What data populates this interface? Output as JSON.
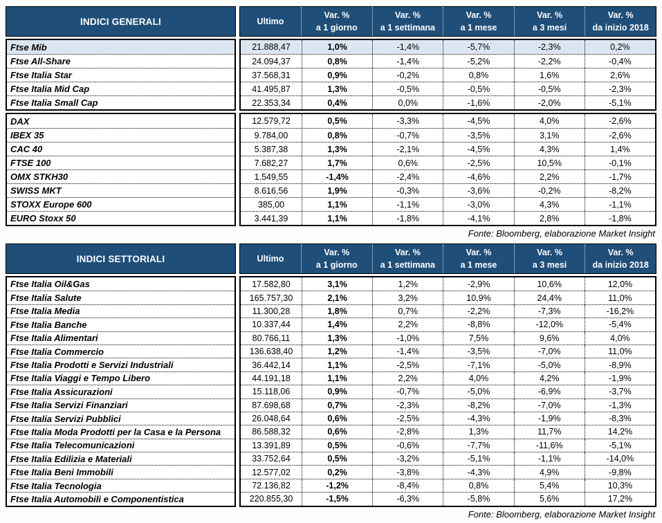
{
  "colors": {
    "header_bg": "#1F4E79",
    "header_text": "#ffffff",
    "highlight_row_bg": "#DCE6F1",
    "border": "#000000",
    "body_text": "#000000"
  },
  "columns": [
    {
      "label": "Ultimo"
    },
    {
      "label": "Var. %",
      "sub": "a 1 giorno"
    },
    {
      "label": "Var. %",
      "sub": "a 1 settimana"
    },
    {
      "label": "Var. %",
      "sub": "a 1 mese"
    },
    {
      "label": "Var. %",
      "sub": "a 3 mesi"
    },
    {
      "label": "Var. %",
      "sub": "da inizio 2018"
    }
  ],
  "tables": [
    {
      "title": "INDICI GENERALI",
      "source": "Fonte: Bloomberg, elaborazione Market Insight",
      "blocks": [
        {
          "rows": [
            {
              "name": "Ftse Mib",
              "highlight": true,
              "values": [
                "21.888,47",
                "1,0%",
                "-1,4%",
                "-5,7%",
                "-2,3%",
                "0,2%"
              ]
            },
            {
              "name": "Ftse All-Share",
              "values": [
                "24.094,37",
                "0,8%",
                "-1,4%",
                "-5,2%",
                "-2,2%",
                "-0,4%"
              ]
            },
            {
              "name": "Ftse Italia Star",
              "values": [
                "37.568,31",
                "0,9%",
                "-0,2%",
                "0,8%",
                "1,6%",
                "2,6%"
              ]
            },
            {
              "name": "Ftse Italia Mid Cap",
              "values": [
                "41.495,87",
                "1,3%",
                "-0,5%",
                "-0,5%",
                "-0,5%",
                "-2,3%"
              ]
            },
            {
              "name": "Ftse Italia Small Cap",
              "values": [
                "22.353,34",
                "0,4%",
                "0,0%",
                "-1,6%",
                "-2,0%",
                "-5,1%"
              ]
            }
          ]
        },
        {
          "rows": [
            {
              "name": "DAX",
              "values": [
                "12.579,72",
                "0,5%",
                "-3,3%",
                "-4,5%",
                "4,0%",
                "-2,6%"
              ]
            },
            {
              "name": "IBEX 35",
              "values": [
                "9.784,00",
                "0,8%",
                "-0,7%",
                "-3,5%",
                "3,1%",
                "-2,6%"
              ]
            },
            {
              "name": "CAC 40",
              "values": [
                "5.387,38",
                "1,3%",
                "-2,1%",
                "-4,5%",
                "4,3%",
                "1,4%"
              ]
            },
            {
              "name": "FTSE 100",
              "values": [
                "7.682,27",
                "1,7%",
                "0,6%",
                "-2,5%",
                "10,5%",
                "-0,1%"
              ]
            },
            {
              "name": "OMX STKH30",
              "values": [
                "1.549,55",
                "-1,4%",
                "-2,4%",
                "-4,6%",
                "2,2%",
                "-1,7%"
              ]
            },
            {
              "name": "SWISS MKT",
              "values": [
                "8.616,56",
                "1,9%",
                "-0,3%",
                "-3,6%",
                "-0,2%",
                "-8,2%"
              ]
            },
            {
              "name": "STOXX Europe 600",
              "values": [
                "385,00",
                "1,1%",
                "-1,1%",
                "-3,0%",
                "4,3%",
                "-1,1%"
              ]
            },
            {
              "name": "EURO Stoxx 50",
              "values": [
                "3.441,39",
                "1,1%",
                "-1,8%",
                "-4,1%",
                "2,8%",
                "-1,8%"
              ]
            }
          ]
        }
      ]
    },
    {
      "title": "INDICI SETTORIALI",
      "source": "Fonte: Bloomberg, elaborazione Market Insight",
      "blocks": [
        {
          "rows": [
            {
              "name": "Ftse Italia Oil&Gas",
              "values": [
                "17.582,80",
                "3,1%",
                "1,2%",
                "-2,9%",
                "10,6%",
                "12,0%"
              ]
            },
            {
              "name": "Ftse Italia Salute",
              "values": [
                "165.757,30",
                "2,1%",
                "3,2%",
                "10,9%",
                "24,4%",
                "11,0%"
              ]
            },
            {
              "name": "Ftse Italia Media",
              "values": [
                "11.300,28",
                "1,8%",
                "0,7%",
                "-2,2%",
                "-7,3%",
                "-16,2%"
              ]
            },
            {
              "name": "Ftse Italia Banche",
              "values": [
                "10.337,44",
                "1,4%",
                "2,2%",
                "-8,8%",
                "-12,0%",
                "-5,4%"
              ]
            },
            {
              "name": "Ftse Italia Alimentari",
              "values": [
                "80.766,11",
                "1,3%",
                "-1,0%",
                "7,5%",
                "9,6%",
                "4,0%"
              ]
            },
            {
              "name": "Ftse Italia Commercio",
              "values": [
                "136.638,40",
                "1,2%",
                "-1,4%",
                "-3,5%",
                "-7,0%",
                "11,0%"
              ]
            },
            {
              "name": "Ftse Italia Prodotti e Servizi Industriali",
              "values": [
                "36.442,14",
                "1,1%",
                "-2,5%",
                "-7,1%",
                "-5,0%",
                "-8,9%"
              ]
            },
            {
              "name": "Ftse Italia Viaggi e Tempo Libero",
              "values": [
                "44.191,18",
                "1,1%",
                "2,2%",
                "4,0%",
                "4,2%",
                "-1,9%"
              ]
            },
            {
              "name": "Ftse Italia Assicurazioni",
              "values": [
                "15.118,06",
                "0,9%",
                "-0,7%",
                "-5,0%",
                "-6,9%",
                "-3,7%"
              ]
            },
            {
              "name": "Ftse Italia Servizi Finanziari",
              "values": [
                "87.698,68",
                "0,7%",
                "-2,3%",
                "-8,2%",
                "-7,0%",
                "-1,3%"
              ]
            },
            {
              "name": "Ftse Italia Servizi Pubblici",
              "values": [
                "26.048,64",
                "0,6%",
                "-2,5%",
                "-4,3%",
                "-1,9%",
                "-8,3%"
              ]
            },
            {
              "name": "Ftse Italia Moda Prodotti per la Casa e la Persona",
              "values": [
                "86.588,32",
                "0,6%",
                "-2,8%",
                "1,3%",
                "11,7%",
                "14,2%"
              ]
            },
            {
              "name": "Ftse Italia Telecomunicazioni",
              "values": [
                "13.391,89",
                "0,5%",
                "-0,6%",
                "-7,7%",
                "-11,6%",
                "-5,1%"
              ]
            },
            {
              "name": "Ftse Italia Edilizia e Materiali",
              "values": [
                "33.752,64",
                "0,5%",
                "-3,2%",
                "-5,1%",
                "-1,1%",
                "-14,0%"
              ]
            },
            {
              "name": "Ftse Italia Beni Immobili",
              "values": [
                "12.577,02",
                "0,2%",
                "-3,8%",
                "-4,3%",
                "4,9%",
                "-9,8%"
              ]
            },
            {
              "name": "Ftse Italia Tecnologia",
              "values": [
                "72.136,82",
                "-1,2%",
                "-8,4%",
                "0,8%",
                "5,4%",
                "10,3%"
              ]
            },
            {
              "name": "Ftse Italia Automobili e Componentistica",
              "values": [
                "220.855,30",
                "-1,5%",
                "-6,3%",
                "-5,8%",
                "5,6%",
                "17,2%"
              ]
            }
          ]
        }
      ]
    }
  ]
}
